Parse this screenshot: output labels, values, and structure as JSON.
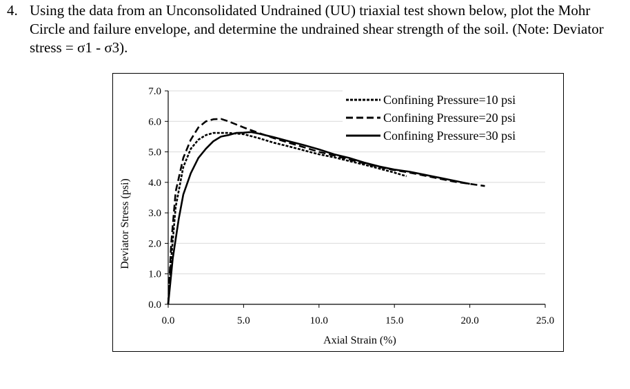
{
  "question": {
    "number": "4.",
    "text": "Using the data from an Unconsolidated Undrained (UU) triaxial test shown below, plot the Mohr Circle and failure envelope, and determine the undrained shear strength of the soil. (Note: Deviator stress = σ1 - σ3)."
  },
  "chart_data": {
    "type": "line",
    "xlabel": "Axial Strain (%)",
    "ylabel": "Deviator Stress (psi)",
    "xlim": [
      0,
      25
    ],
    "ylim": [
      0,
      7
    ],
    "x_ticks": [
      "0.0",
      "5.0",
      "10.0",
      "15.0",
      "20.0",
      "25.0"
    ],
    "y_ticks": [
      "0.0",
      "1.0",
      "2.0",
      "3.0",
      "4.0",
      "5.0",
      "6.0",
      "7.0"
    ],
    "grid": "horizontal",
    "legend_position": "top-right",
    "series": [
      {
        "name": "Confining Pressure=10 psi",
        "style": "dotted",
        "color": "#000000",
        "points": [
          [
            0,
            0
          ],
          [
            0.2,
            1.5
          ],
          [
            0.5,
            3.2
          ],
          [
            1.0,
            4.5
          ],
          [
            1.5,
            5.1
          ],
          [
            2.0,
            5.4
          ],
          [
            2.5,
            5.55
          ],
          [
            3.0,
            5.62
          ],
          [
            4.0,
            5.62
          ],
          [
            5.0,
            5.58
          ],
          [
            6.0,
            5.45
          ],
          [
            7.0,
            5.3
          ],
          [
            8.0,
            5.18
          ],
          [
            9.0,
            5.05
          ],
          [
            10.0,
            4.92
          ],
          [
            11.0,
            4.82
          ],
          [
            12.0,
            4.7
          ],
          [
            13.0,
            4.58
          ],
          [
            14.0,
            4.45
          ],
          [
            15.0,
            4.32
          ],
          [
            15.8,
            4.2
          ]
        ]
      },
      {
        "name": "Confining Pressure=20 psi",
        "style": "dashed",
        "color": "#000000",
        "points": [
          [
            0,
            0
          ],
          [
            0.2,
            2.0
          ],
          [
            0.5,
            3.7
          ],
          [
            1.0,
            4.8
          ],
          [
            1.5,
            5.4
          ],
          [
            2.0,
            5.8
          ],
          [
            2.5,
            6.0
          ],
          [
            3.0,
            6.07
          ],
          [
            3.5,
            6.08
          ],
          [
            4.0,
            6.0
          ],
          [
            4.5,
            5.9
          ],
          [
            5.0,
            5.8
          ],
          [
            6.0,
            5.62
          ],
          [
            7.0,
            5.45
          ],
          [
            8.0,
            5.3
          ],
          [
            9.0,
            5.15
          ],
          [
            10.0,
            5.0
          ],
          [
            11.0,
            4.88
          ],
          [
            12.0,
            4.75
          ],
          [
            13.0,
            4.62
          ],
          [
            14.0,
            4.5
          ],
          [
            15.0,
            4.4
          ],
          [
            16.0,
            4.32
          ],
          [
            17.0,
            4.22
          ],
          [
            18.0,
            4.12
          ],
          [
            19.0,
            4.02
          ],
          [
            20.0,
            3.95
          ],
          [
            21.0,
            3.88
          ]
        ]
      },
      {
        "name": "Confining Pressure=30 psi",
        "style": "solid",
        "color": "#000000",
        "points": [
          [
            0,
            0
          ],
          [
            0.3,
            1.5
          ],
          [
            0.7,
            2.8
          ],
          [
            1.0,
            3.6
          ],
          [
            1.5,
            4.3
          ],
          [
            2.0,
            4.8
          ],
          [
            2.5,
            5.1
          ],
          [
            3.0,
            5.35
          ],
          [
            3.5,
            5.5
          ],
          [
            4.0,
            5.55
          ],
          [
            4.5,
            5.62
          ],
          [
            5.0,
            5.63
          ],
          [
            5.5,
            5.65
          ],
          [
            6.0,
            5.6
          ],
          [
            7.0,
            5.48
          ],
          [
            8.0,
            5.35
          ],
          [
            9.0,
            5.22
          ],
          [
            10.0,
            5.08
          ],
          [
            11.0,
            4.92
          ],
          [
            12.0,
            4.8
          ],
          [
            13.0,
            4.65
          ],
          [
            14.0,
            4.52
          ],
          [
            15.0,
            4.42
          ],
          [
            16.0,
            4.35
          ],
          [
            17.0,
            4.25
          ],
          [
            18.0,
            4.15
          ],
          [
            19.0,
            4.05
          ],
          [
            20.0,
            3.95
          ]
        ]
      }
    ]
  }
}
